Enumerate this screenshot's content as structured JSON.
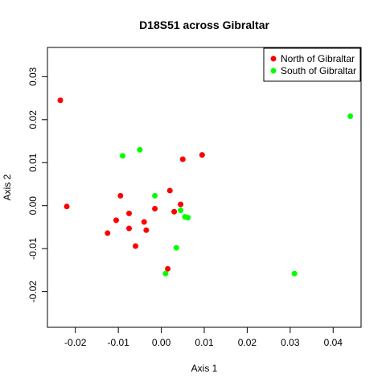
{
  "chart_data": {
    "type": "scatter",
    "title": "D18S51 across Gibraltar",
    "xlabel": "Axis 1",
    "ylabel": "Axis 2",
    "xlim": [
      -0.0265,
      0.0465
    ],
    "ylim": [
      -0.0283,
      0.0368
    ],
    "x_ticks": [
      -0.02,
      -0.01,
      0.0,
      0.01,
      0.02,
      0.03,
      0.04
    ],
    "x_tick_labels": [
      "-0.02",
      "-0.01",
      "0.00",
      "0.01",
      "0.02",
      "0.03",
      "0.04"
    ],
    "y_ticks": [
      -0.02,
      -0.01,
      0.0,
      0.01,
      0.02,
      0.03
    ],
    "y_tick_labels": [
      "-0.02",
      "-0.01",
      "0.00",
      "0.01",
      "0.02",
      "0.03"
    ],
    "grid": false,
    "legend_position": "top-right",
    "series": [
      {
        "name": "North of Gibraltar",
        "color": "#ff0000",
        "points": [
          [
            -0.0235,
            0.0245
          ],
          [
            -0.022,
            -0.0002
          ],
          [
            -0.0095,
            0.0023
          ],
          [
            -0.0075,
            -0.0018
          ],
          [
            -0.0105,
            -0.0034
          ],
          [
            -0.0075,
            -0.0053
          ],
          [
            -0.0125,
            -0.0064
          ],
          [
            -0.004,
            -0.0038
          ],
          [
            -0.0035,
            -0.0057
          ],
          [
            -0.006,
            -0.0094
          ],
          [
            -0.0015,
            -0.0007
          ],
          [
            0.002,
            0.0035
          ],
          [
            0.003,
            -0.0014
          ],
          [
            0.0045,
            0.0003
          ],
          [
            0.005,
            0.0108
          ],
          [
            0.0095,
            0.0118
          ],
          [
            0.0015,
            -0.0147
          ]
        ]
      },
      {
        "name": "South of Gibraltar",
        "color": "#00ff00",
        "points": [
          [
            -0.009,
            0.0116
          ],
          [
            -0.005,
            0.013
          ],
          [
            -0.0015,
            0.0023
          ],
          [
            0.0045,
            -0.0011
          ],
          [
            0.0055,
            -0.0026
          ],
          [
            0.0062,
            -0.0028
          ],
          [
            0.0035,
            -0.0098
          ],
          [
            0.001,
            -0.0158
          ],
          [
            0.031,
            -0.0158
          ],
          [
            0.044,
            0.0208
          ]
        ]
      }
    ]
  }
}
